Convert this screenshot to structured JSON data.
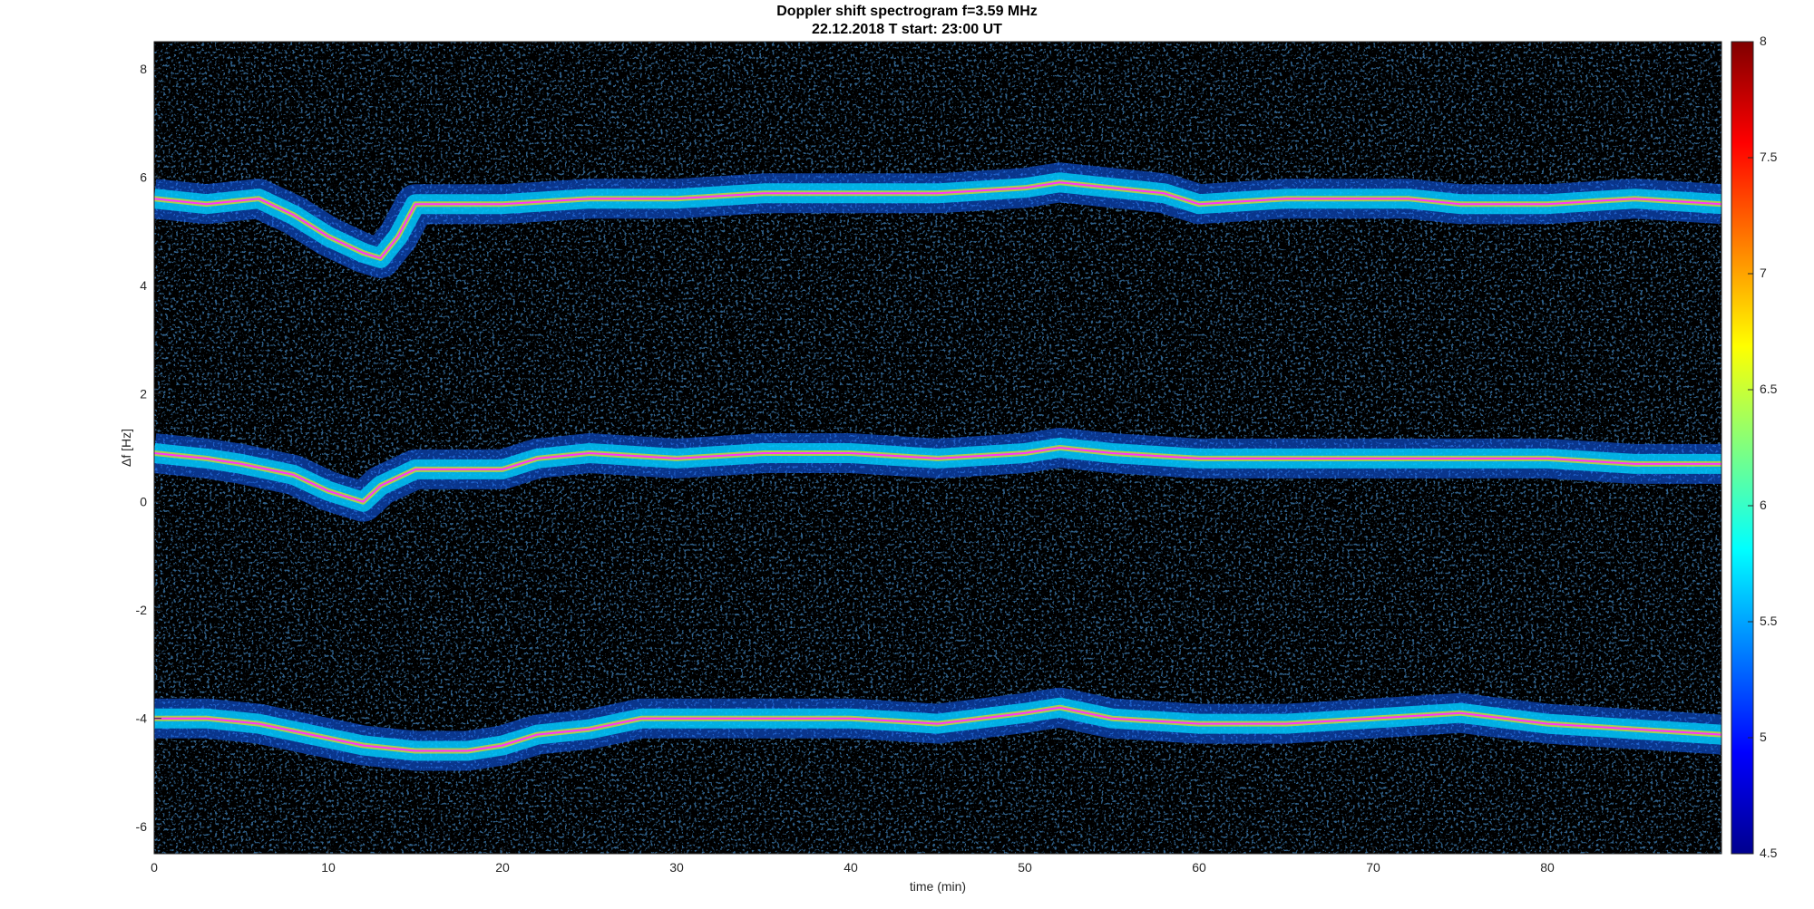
{
  "chart_data": {
    "type": "heatmap",
    "title": "Doppler shift spectrogram f=3.59 MHz",
    "subtitle": "22.12.2018   T start: 23:00 UT",
    "xlabel": "time (min)",
    "ylabel": "Δf [Hz]",
    "xlim": [
      0,
      90
    ],
    "ylim": [
      -6.5,
      8.5
    ],
    "x_ticks": [
      "0",
      "10",
      "20",
      "30",
      "40",
      "50",
      "60",
      "70",
      "80"
    ],
    "y_ticks": [
      "8",
      "6",
      "4",
      "2",
      "0",
      "-2",
      "-4",
      "-6"
    ],
    "colorbar": {
      "colormap": "jet",
      "range": [
        4.5,
        8
      ],
      "ticks": [
        "8",
        "7.5",
        "7",
        "6.5",
        "6",
        "5.5",
        "5",
        "4.5"
      ]
    },
    "series": [
      {
        "color": "#ff33ff",
        "x": [
          0,
          3,
          6,
          8,
          10,
          12,
          13,
          14,
          15,
          17,
          20,
          25,
          30,
          35,
          40,
          45,
          50,
          52,
          55,
          58,
          60,
          65,
          70,
          72,
          75,
          80,
          85,
          90
        ],
        "y": [
          5.6,
          5.5,
          5.6,
          5.3,
          4.9,
          4.6,
          4.5,
          4.9,
          5.5,
          5.5,
          5.5,
          5.6,
          5.6,
          5.7,
          5.7,
          5.7,
          5.8,
          5.9,
          5.8,
          5.7,
          5.5,
          5.6,
          5.6,
          5.6,
          5.5,
          5.5,
          5.6,
          5.5
        ]
      },
      {
        "color": "#ff33ff",
        "x": [
          0,
          3,
          5,
          8,
          10,
          12,
          13,
          15,
          17,
          20,
          22,
          25,
          30,
          35,
          40,
          45,
          50,
          52,
          55,
          60,
          65,
          70,
          75,
          80,
          85,
          90
        ],
        "y": [
          0.9,
          0.8,
          0.7,
          0.5,
          0.2,
          0.0,
          0.3,
          0.6,
          0.6,
          0.6,
          0.8,
          0.9,
          0.8,
          0.9,
          0.9,
          0.8,
          0.9,
          1.0,
          0.9,
          0.8,
          0.8,
          0.8,
          0.8,
          0.8,
          0.7,
          0.7
        ]
      },
      {
        "color": "#ff33ff",
        "x": [
          0,
          3,
          6,
          9,
          12,
          15,
          18,
          20,
          22,
          25,
          28,
          30,
          35,
          40,
          45,
          50,
          52,
          55,
          60,
          65,
          70,
          75,
          80,
          85,
          90
        ],
        "y": [
          -4.0,
          -4.0,
          -4.1,
          -4.3,
          -4.5,
          -4.6,
          -4.6,
          -4.5,
          -4.3,
          -4.2,
          -4.0,
          -4.0,
          -4.0,
          -4.0,
          -4.1,
          -3.9,
          -3.8,
          -4.0,
          -4.1,
          -4.1,
          -4.0,
          -3.9,
          -4.1,
          -4.2,
          -4.3
        ]
      }
    ],
    "background_color": "#00008f",
    "grid": false
  }
}
